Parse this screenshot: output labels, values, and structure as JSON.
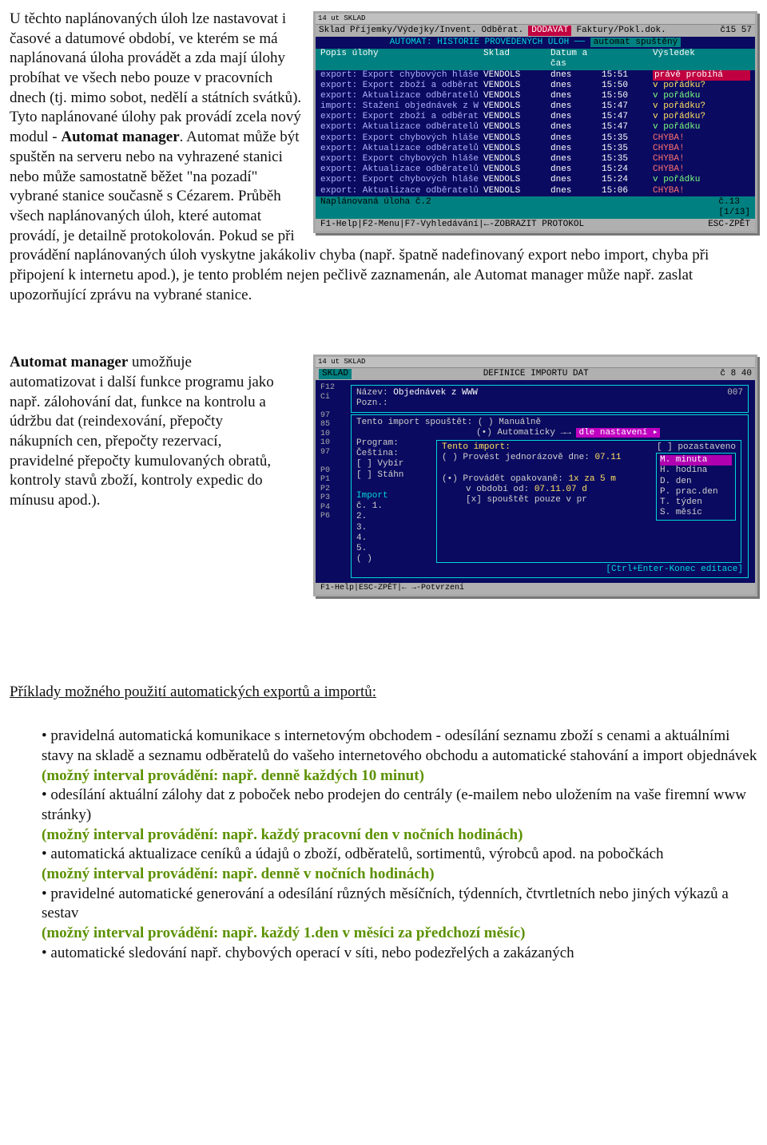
{
  "para1": {
    "t0": "U těchto naplánovaných úloh lze nastavovat i časové a datumové období, ve kterém se má naplánovaná úloha provádět a zda mají úlohy probíhat ve všech nebo pouze v pracovních dnech (tj. mimo sobot, nedělí a státních svátků). Tyto naplánované úlohy pak provádí zcela nový modul  - ",
    "b0": "Automat manager",
    "t1": ". Automat může být spuštěn na serveru nebo na vyhrazené stanici nebo může samostatně běžet \"na pozadí\" vybrané stanice současně s Cézarem. Průběh všech naplánovaných úloh, které automat provádí, je detailně protokolován. Pokud se při provádění naplánovaných úloh vyskytne jakákoliv chyba (např. špatně nadefinovaný export nebo import, chyba při připojení k internetu apod.), je tento problém nejen pečlivě zaznamenán, ale Automat manager může např. zaslat upozorňující zprávu na vybrané stanice."
  },
  "para2": {
    "b0": "Automat manager",
    "t1": "  umožňuje automatizovat i další funkce programu jako např. zálohování dat, funkce na kontrolu a údržbu dat (reindexování, přepočty nákupních cen, přepočty rezervací, pravidelné přepočty kumulovaných obratů, kontroly stavů zboží, kontroly expedic do mínusu apod.)."
  },
  "heading": "Příklady možného použití automatických exportů a importů:",
  "bullets": {
    "b1a": "• pravidelná automatická komunikace s internetovým obchodem - odesílání seznamu zboží s cenami a aktuálními stavy na skladě a seznamu odběratelů do vašeho internetového obchodu a automatické stahování a import objednávek",
    "b1g": "(možný interval provádění: např. denně každých 10 minut)",
    "b2a": "• odesílání aktuální zálohy dat z poboček nebo prodejen do centrály (e-mailem nebo uložením na vaše firemní www stránky)",
    "b2g": "(možný interval provádění: např. každý pracovní den v nočních hodinách)",
    "b3a": "• automatická aktualizace ceníků a údajů o zboží, odběratelů, sortimentů, výrobců apod. na pobočkách",
    "b3g": "(možný interval provádění: např. denně v nočních hodinách)",
    "b4a": "• pravidelné automatické generování a odesílání různých měsíčních, týdenních, čtvrtletních nebo jiných výkazů a sestav",
    "b4g": "(možný interval provádění: např. každý 1.den v měsíci za předchozí měsíc)",
    "b5a": "• automatické sledování např. chybových operací v síti, nebo podezřelých a zakázaných"
  },
  "term1": {
    "top": "14 ut  SKLAD",
    "menu": [
      "Sklad",
      "Příjemky/Výdejky/Invent.",
      "Odběrat.",
      "DODAVAT",
      "Faktury/Pokl.dok.",
      "č15 57"
    ],
    "title_l": "AUTOMAT: HISTORIE PROVEDENÝCH ÚLOH",
    "title_r": "automat spuštěný",
    "head": [
      "Popis úlohy",
      "Sklad",
      "Datum a čas",
      "",
      "Výsledek"
    ],
    "rows": [
      {
        "c": [
          "export: Export chybových hláše",
          "VENDOLS",
          "dnes",
          "15:51",
          "právě probíhá"
        ],
        "st": "hi"
      },
      {
        "c": [
          "export: Export zboží a odběrat",
          "VENDOLS",
          "dnes",
          "15:50",
          "v pořádku?"
        ],
        "st": "wait"
      },
      {
        "c": [
          "export: Aktualizace odběratelů",
          "VENDOLS",
          "dnes",
          "15:50",
          "v pořádku"
        ],
        "st": "ok"
      },
      {
        "c": [
          "import: Stažení objednávek z W",
          "VENDOLS",
          "dnes",
          "15:47",
          "v pořádku?"
        ],
        "st": "wait"
      },
      {
        "c": [
          "export: Export zboží a odběrat",
          "VENDOLS",
          "dnes",
          "15:47",
          "v pořádku?"
        ],
        "st": "wait"
      },
      {
        "c": [
          "export: Aktualizace odběratelů",
          "VENDOLS",
          "dnes",
          "15:47",
          "v pořádku"
        ],
        "st": "ok"
      },
      {
        "c": [
          "export: Export chybových hláše",
          "VENDOLS",
          "dnes",
          "15:35",
          "CHYBA!"
        ],
        "st": "err"
      },
      {
        "c": [
          "export: Aktualizace odběratelů",
          "VENDOLS",
          "dnes",
          "15:35",
          "CHYBA!"
        ],
        "st": "err"
      },
      {
        "c": [
          "export: Export chybových hláše",
          "VENDOLS",
          "dnes",
          "15:35",
          "CHYBA!"
        ],
        "st": "err"
      },
      {
        "c": [
          "export: Aktualizace odběratelů",
          "VENDOLS",
          "dnes",
          "15:24",
          "CHYBA!"
        ],
        "st": "err"
      },
      {
        "c": [
          "export: Export chybových hláše",
          "VENDOLS",
          "dnes",
          "15:24",
          "v pořádku"
        ],
        "st": "ok"
      },
      {
        "c": [
          "export: Aktualizace odběratelů",
          "VENDOLS",
          "dnes",
          "15:06",
          "CHYBA!"
        ],
        "st": "err"
      }
    ],
    "foot_l": "Naplánovaná úloha č.2",
    "foot_r": "č.13",
    "foot_r2": "[1/13]",
    "status_l": "F1-Help|F2-Menu|F7-Vyhledávání|←-ZOBRAZIT PROTOKOL",
    "status_r": "ESC-ZPĚT"
  },
  "term2": {
    "top": "14 ut  SKLAD",
    "bar_l": "SKLAD",
    "bar_c": "DEFINICE IMPORTU DAT",
    "bar_r": "č 8 40",
    "f12": "F12",
    "ci": "Ci",
    "nums": [
      "97",
      "85",
      "10",
      "10",
      "97"
    ],
    "ps": [
      "P0",
      "P1",
      "P2",
      "P3",
      "P4",
      "P6"
    ],
    "nazev_l": "Název:",
    "nazev_v": "Objednávek z WWW",
    "pozn_l": "Pozn.:",
    "r007": "007",
    "spust": "Tento import spouštět:",
    "man": "( ) Manuálně",
    "auto": "(•) Automaticky →→",
    "dle": "dle nastavení ▸",
    "prog_l": "Program:",
    "ces_l": "Čeština:",
    "vyb": "[ ] Vybír",
    "stahn": "[ ] Stáhn",
    "tento": "Tento import:",
    "poza": "[ ] pozastaveno",
    "jed": "( ) Provést jednorázově dne:",
    "jed_d": "07.11",
    "opak": "(•) Provádět opakovaně:",
    "opak_v": "1x za  5  m",
    "obdobi": "v období od:",
    "obdobi_v": "07.11.07 d",
    "pouze": "[x] spouštět pouze v pr",
    "import_l": "Import",
    "imp_c": "č.  1.",
    "imp_n": [
      "2.",
      "3.",
      "4.",
      "5.",
      "( )"
    ],
    "pop": {
      "sel": "M. minuta",
      "items": [
        "H. hodina",
        "D. den",
        "P. prac.den",
        "T. týden",
        "S. měsíc"
      ]
    },
    "footbar": "[Ctrl+Enter-Konec editace]",
    "status": "F1-Help|ESC-ZPĚT|← →-Potvrzení"
  }
}
